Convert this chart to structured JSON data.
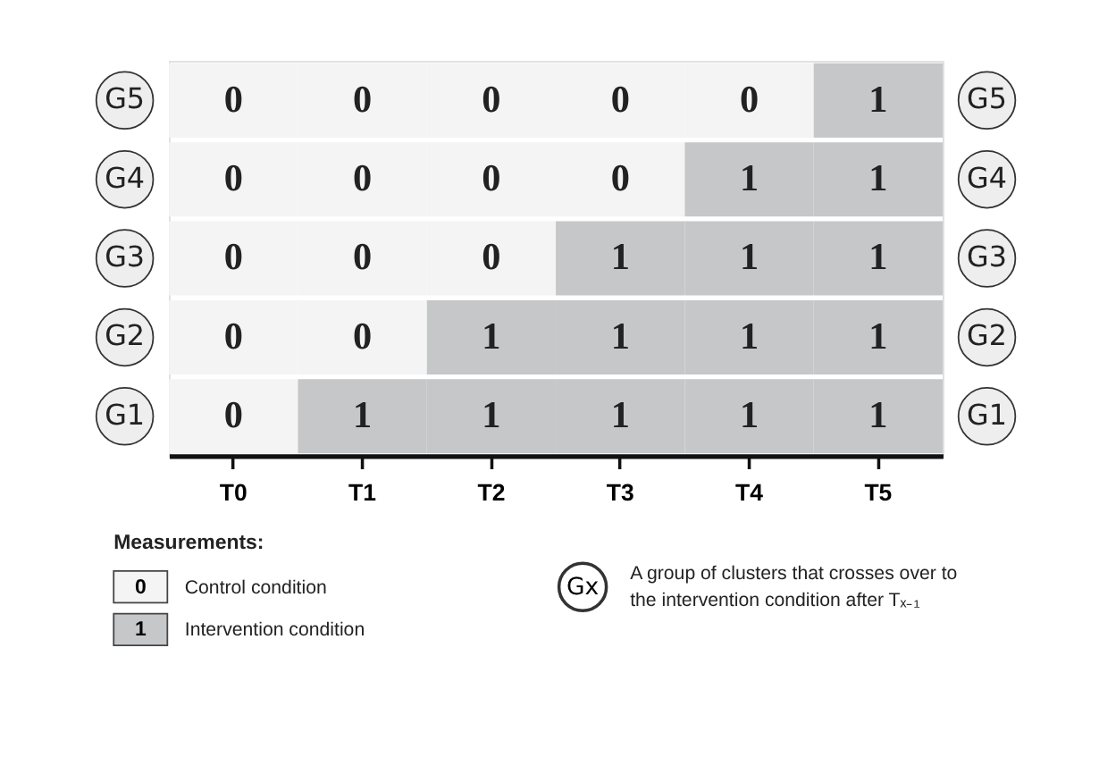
{
  "chart_data": {
    "type": "heatmap",
    "categories": [
      "T0",
      "T1",
      "T2",
      "T3",
      "T4",
      "T5"
    ],
    "y_categories": [
      "G5",
      "G4",
      "G3",
      "G2",
      "G1"
    ],
    "y2_categories": [
      "G5",
      "G4",
      "G3",
      "G2",
      "G1"
    ],
    "cells": [
      [
        0,
        0,
        0,
        0,
        0,
        1
      ],
      [
        0,
        0,
        0,
        0,
        1,
        1
      ],
      [
        0,
        0,
        0,
        1,
        1,
        1
      ],
      [
        0,
        0,
        1,
        1,
        1,
        1
      ],
      [
        0,
        1,
        1,
        1,
        1,
        1
      ]
    ],
    "data_labels": true,
    "annotations": [
      "Measurements:",
      "0",
      "Control condition",
      "1",
      "Intervention condition",
      "Gx",
      "A group of clusters that crosses over to\nthe intervention condition after Tₓ₋₁"
    ]
  }
}
